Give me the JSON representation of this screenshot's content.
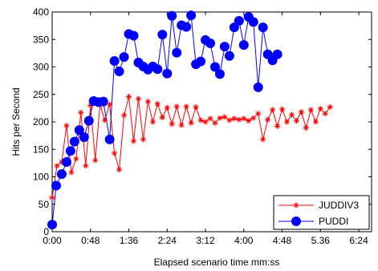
{
  "chart_data": {
    "type": "line",
    "title": "",
    "xlabel": "Elapsed scenario time mm:ss",
    "ylabel": "Hits per Second",
    "xlim": [
      0,
      400
    ],
    "ylim": [
      0,
      400
    ],
    "x_ticks": [
      0,
      48,
      96,
      144,
      192,
      240,
      288,
      336,
      384
    ],
    "x_tick_labels": [
      "0:00",
      "0:48",
      "1:36",
      "2:24",
      "3:12",
      "4:00",
      "4:48",
      "5.36",
      "6:24"
    ],
    "y_ticks": [
      0,
      50,
      100,
      150,
      200,
      250,
      300,
      350,
      400
    ],
    "y_tick_labels": [
      "0",
      "50",
      "100",
      "150",
      "200",
      "250",
      "300",
      "350",
      "400"
    ],
    "grid": false,
    "legend_position": "bottom-right",
    "series": [
      {
        "name": "JUDDIV3",
        "color": "#ff0000",
        "marker": "star",
        "points": [
          [
            0,
            62
          ],
          [
            6,
            120
          ],
          [
            12,
            127
          ],
          [
            18,
            193
          ],
          [
            24,
            108
          ],
          [
            30,
            133
          ],
          [
            36,
            217
          ],
          [
            42,
            120
          ],
          [
            48,
            230
          ],
          [
            54,
            130
          ],
          [
            60,
            232
          ],
          [
            66,
            203
          ],
          [
            72,
            232
          ],
          [
            78,
            143
          ],
          [
            84,
            113
          ],
          [
            90,
            212
          ],
          [
            96,
            246
          ],
          [
            102,
            165
          ],
          [
            108,
            242
          ],
          [
            114,
            168
          ],
          [
            120,
            237
          ],
          [
            126,
            200
          ],
          [
            132,
            233
          ],
          [
            138,
            208
          ],
          [
            144,
            226
          ],
          [
            150,
            196
          ],
          [
            156,
            228
          ],
          [
            162,
            194
          ],
          [
            168,
            228
          ],
          [
            174,
            198
          ],
          [
            180,
            227
          ],
          [
            186,
            203
          ],
          [
            192,
            200
          ],
          [
            198,
            206
          ],
          [
            204,
            198
          ],
          [
            210,
            207
          ],
          [
            216,
            209
          ],
          [
            222,
            203
          ],
          [
            228,
            206
          ],
          [
            234,
            204
          ],
          [
            240,
            206
          ],
          [
            246,
            202
          ],
          [
            252,
            207
          ],
          [
            258,
            215
          ],
          [
            264,
            168
          ],
          [
            270,
            204
          ],
          [
            276,
            222
          ],
          [
            282,
            192
          ],
          [
            288,
            223
          ],
          [
            294,
            200
          ],
          [
            300,
            213
          ],
          [
            306,
            202
          ],
          [
            312,
            218
          ],
          [
            318,
            189
          ],
          [
            324,
            222
          ],
          [
            330,
            200
          ],
          [
            336,
            224
          ],
          [
            342,
            215
          ],
          [
            348,
            227
          ]
        ]
      },
      {
        "name": "PUDDI",
        "color": "#0000ff",
        "marker": "circle",
        "points": [
          [
            0,
            13
          ],
          [
            5,
            84
          ],
          [
            12,
            105
          ],
          [
            18,
            127
          ],
          [
            23,
            147
          ],
          [
            28,
            164
          ],
          [
            34,
            185
          ],
          [
            40,
            172
          ],
          [
            46,
            202
          ],
          [
            52,
            238
          ],
          [
            58,
            236
          ],
          [
            64,
            237
          ],
          [
            72,
            168
          ],
          [
            78,
            311
          ],
          [
            84,
            292
          ],
          [
            90,
            318
          ],
          [
            96,
            360
          ],
          [
            102,
            357
          ],
          [
            108,
            308
          ],
          [
            114,
            301
          ],
          [
            120,
            295
          ],
          [
            126,
            301
          ],
          [
            132,
            296
          ],
          [
            138,
            359
          ],
          [
            144,
            288
          ],
          [
            150,
            393
          ],
          [
            156,
            326
          ],
          [
            162,
            376
          ],
          [
            168,
            373
          ],
          [
            174,
            394
          ],
          [
            180,
            305
          ],
          [
            186,
            310
          ],
          [
            192,
            349
          ],
          [
            198,
            343
          ],
          [
            204,
            300
          ],
          [
            210,
            287
          ],
          [
            216,
            337
          ],
          [
            222,
            320
          ],
          [
            228,
            372
          ],
          [
            234,
            384
          ],
          [
            240,
            340
          ],
          [
            246,
            391
          ],
          [
            252,
            382
          ],
          [
            258,
            263
          ],
          [
            264,
            372
          ],
          [
            270,
            323
          ],
          [
            276,
            312
          ],
          [
            282,
            323
          ]
        ]
      }
    ]
  }
}
